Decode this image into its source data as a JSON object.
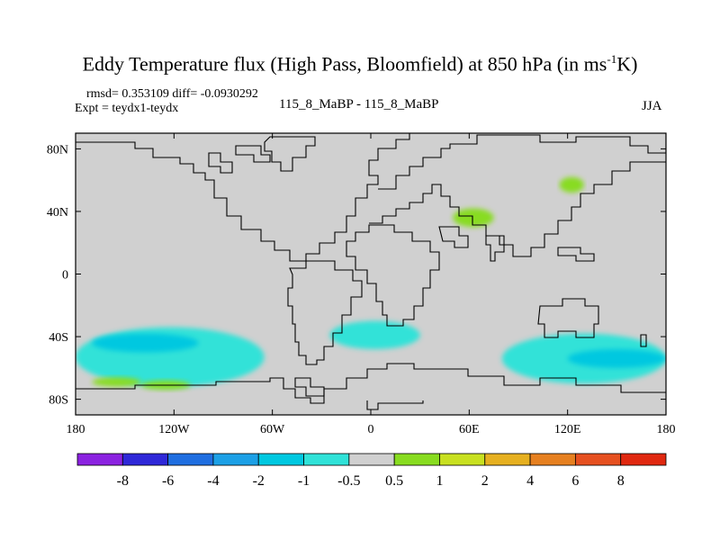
{
  "title": {
    "main": "Eddy Temperature flux (High Pass, Bloomfield) at 850 hPa (in ms",
    "sup": "-1",
    "end": "K)"
  },
  "stats": {
    "rmsd": "rmsd= 0.353109 diff= -0.0930292",
    "expt": "Expt = teydx1-teydx",
    "center": "115_8_MaBP - 115_8_MaBP",
    "season": "JJA"
  },
  "chart_data": {
    "type": "heatmap",
    "projection": "cylindrical-equidistant",
    "xlim": [
      -180,
      180
    ],
    "ylim": [
      -90,
      90
    ],
    "x_ticks": [
      {
        "value": -180,
        "label": "180"
      },
      {
        "value": -120,
        "label": "120W"
      },
      {
        "value": -60,
        "label": "60W"
      },
      {
        "value": 0,
        "label": "0"
      },
      {
        "value": 60,
        "label": "60E"
      },
      {
        "value": 120,
        "label": "120E"
      },
      {
        "value": 180,
        "label": "180"
      }
    ],
    "y_ticks": [
      {
        "value": 80,
        "label": "80N"
      },
      {
        "value": 40,
        "label": "40N"
      },
      {
        "value": 0,
        "label": "0"
      },
      {
        "value": -40,
        "label": "40S"
      },
      {
        "value": -80,
        "label": "80S"
      }
    ],
    "background_color": "#d0d0d0",
    "contour_levels": [
      "-8",
      "-6",
      "-4",
      "-2",
      "-1",
      "-0.5",
      "0.5",
      "1",
      "2",
      "4",
      "6",
      "8"
    ],
    "colorbar_colors": [
      "#8b22e0",
      "#2f28d8",
      "#1f6ee0",
      "#1ca0e6",
      "#00c8e0",
      "#30e2d8",
      "#d0d0d0",
      "#88dc20",
      "#c8e020",
      "#e6b020",
      "#e68020",
      "#e65020",
      "#e02810"
    ],
    "features": [
      {
        "name": "southern-pacific-band",
        "level": "-1",
        "color": "#30e2d8",
        "lon_range": [
          -180,
          -65
        ],
        "lat_range": [
          -72,
          -34
        ]
      },
      {
        "name": "southern-pacific-core",
        "level": "-2",
        "color": "#00c8e0",
        "lon_range": [
          -170,
          -105
        ],
        "lat_range": [
          -50,
          -38
        ]
      },
      {
        "name": "south-indian-ocean-band",
        "level": "-1",
        "color": "#30e2d8",
        "lon_range": [
          80,
          180
        ],
        "lat_range": [
          -70,
          -38
        ]
      },
      {
        "name": "south-indian-core",
        "level": "-2",
        "color": "#00c8e0",
        "lon_range": [
          120,
          180
        ],
        "lat_range": [
          -60,
          -48
        ]
      },
      {
        "name": "south-atlantic-patch",
        "level": "-1",
        "color": "#30e2d8",
        "lon_range": [
          -25,
          30
        ],
        "lat_range": [
          -48,
          -30
        ]
      },
      {
        "name": "central-asia-positive",
        "level": "1",
        "color": "#88dc20",
        "lon_range": [
          50,
          75
        ],
        "lat_range": [
          30,
          42
        ]
      },
      {
        "name": "siberia-positive",
        "level": "1",
        "color": "#88dc20",
        "lon_range": [
          115,
          130
        ],
        "lat_range": [
          52,
          62
        ]
      },
      {
        "name": "southern-ocean-positive-1",
        "level": "1",
        "color": "#88dc20",
        "lon_range": [
          -140,
          -110
        ],
        "lat_range": [
          -74,
          -68
        ]
      },
      {
        "name": "southern-ocean-positive-2",
        "level": "1",
        "color": "#88dc20",
        "lon_range": [
          -170,
          -140
        ],
        "lat_range": [
          -72,
          -66
        ]
      }
    ]
  }
}
